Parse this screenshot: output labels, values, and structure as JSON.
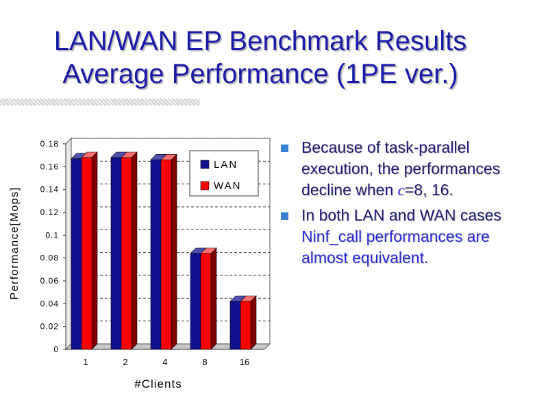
{
  "slide": {
    "title_line1": "LAN/WAN EP Benchmark Results",
    "title_line2": "Average Performance (1PE ver.)"
  },
  "bullets": {
    "b1": {
      "text": "Because of task-parallel execution, the performances decline when ",
      "var": "c",
      "tail": "=8, 16."
    },
    "b2": {
      "prefix": "In both LAN and WAN cases ",
      "highlight": "Ninf_call performances are almost equivalent."
    }
  },
  "colors": {
    "title": "#1a1aa8",
    "lan": "#101090",
    "wan": "#ff0000",
    "bullet_mark": "#3a7fd6"
  },
  "chart_data": {
    "type": "bar",
    "categories": [
      "1",
      "2",
      "4",
      "8",
      "16"
    ],
    "series": [
      {
        "name": "LAN",
        "values": [
          0.167,
          0.168,
          0.166,
          0.084,
          0.042
        ]
      },
      {
        "name": "WAN",
        "values": [
          0.168,
          0.168,
          0.166,
          0.084,
          0.042
        ]
      }
    ],
    "xlabel": "#Clients",
    "ylabel": "Performance[Mops]",
    "ylim": [
      0,
      0.18
    ],
    "yticks": [
      "0",
      "0.02",
      "0.04",
      "0.06",
      "0.08",
      "0.1",
      "0.12",
      "0.14",
      "0.16",
      "0.18"
    ],
    "grid": "horizontal dashed",
    "legend_position": "top-right"
  }
}
